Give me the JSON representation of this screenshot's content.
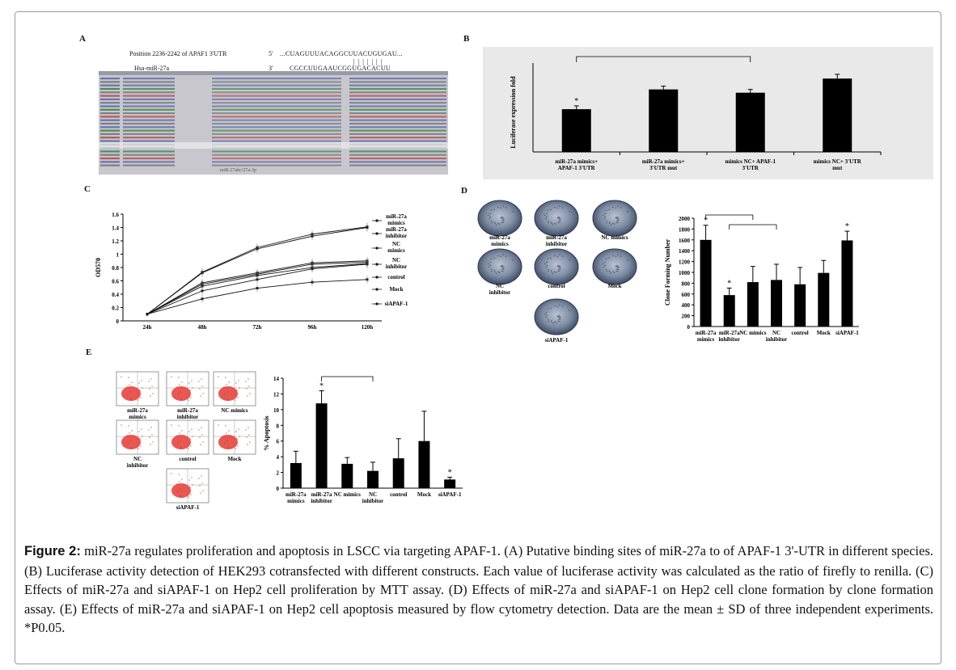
{
  "figure": {
    "panel_labels": [
      "A",
      "B",
      "C",
      "D",
      "E"
    ],
    "caption_label": "Figure 2:",
    "caption_text": " miR-27a regulates proliferation and apoptosis in LSCC via targeting APAF-1. (A) Putative binding sites of miR-27a to of APAF-1 3'-UTR in different species. (B) Luciferase activity detection of HEK293 cotransfected with different constructs. Each value of luciferase activity was calculated as the ratio of firefly to renilla. (C) Effects of miR-27a and siAPAF-1 on Hep2 cell proliferation by MTT assay. (D) Effects of miR-27a and siAPAF-1 on Hep2 cell clone formation by clone formation assay. (E) Effects of miR-27a and siAPAF-1 on Hep2 cell apoptosis measured by flow cytometry detection. Data are the mean ± SD of three independent experiments. *P0.05."
  },
  "panel_a": {
    "position_text": "Position 2236-2242 of APAF1 3'UTR",
    "utr_prime": "5'",
    "utr_seq": "...CUAGUUUACAGGCUUACUGUGAU...",
    "mir_name": "Hsa-miR-27a",
    "mir_prime": "3'",
    "mir_seq": "CGCCUUGAAUCGGUGACACUU",
    "bottom_label": "miR-27abc/27a-3p"
  },
  "colonies": [
    {
      "label": "miR-27a mimics"
    },
    {
      "label": "miR-27a inhibitor"
    },
    {
      "label": "NC mimics"
    },
    {
      "label": "NC inhibitor"
    },
    {
      "label": "control"
    },
    {
      "label": "Mock"
    },
    {
      "label": "siAPAF-1"
    }
  ],
  "flow_labels": [
    "miR-27a mimics",
    "miR-27a inhibitor",
    "NC mimics",
    "NC inhibitor",
    "control",
    "Mock",
    "siAPAF-1"
  ],
  "chart_data": [
    {
      "id": "B",
      "type": "bar",
      "ylabel": "Luciferase expression fold",
      "categories": [
        "miR-27a mimics+ APAF-1 3'UTR",
        "miR-27a mimics+ 3'UTR mut",
        "mimics NC+ APAF-1 3'UTR",
        "mimics NC+ 3'UTR mut"
      ],
      "values": [
        13,
        19,
        18,
        22.3
      ],
      "errors": [
        1,
        1,
        1,
        1.3
      ],
      "ylim": [
        0,
        28
      ],
      "significance": [
        "*",
        "",
        "",
        ""
      ],
      "bracket": [
        0,
        2
      ]
    },
    {
      "id": "C",
      "type": "line",
      "ylabel": "OD570",
      "x": [
        "24h",
        "48h",
        "72h",
        "96h",
        "120h"
      ],
      "ylim": [
        0,
        1.6
      ],
      "yticks": [
        0,
        0.2,
        0.4,
        0.6,
        0.8,
        1.0,
        1.2,
        1.4,
        1.6
      ],
      "series": [
        {
          "name": "miR-27a mimics",
          "values": [
            0.1,
            0.73,
            1.1,
            1.3,
            1.41
          ],
          "marker": "square"
        },
        {
          "name": "miR-27a inhibitor",
          "values": [
            0.1,
            0.72,
            1.08,
            1.27,
            1.4
          ],
          "marker": "triangle"
        },
        {
          "name": "NC mimics",
          "values": [
            0.1,
            0.57,
            0.72,
            0.87,
            0.9
          ],
          "marker": "x"
        },
        {
          "name": "NC inhibitor",
          "values": [
            0.1,
            0.55,
            0.7,
            0.85,
            0.88
          ],
          "marker": "star"
        },
        {
          "name": "control",
          "values": [
            0.1,
            0.52,
            0.68,
            0.8,
            0.86
          ],
          "marker": "circle"
        },
        {
          "name": "Mock",
          "values": [
            0.1,
            0.45,
            0.62,
            0.78,
            0.85
          ],
          "marker": "plus"
        },
        {
          "name": "siAPAF-1",
          "values": [
            0.1,
            0.33,
            0.49,
            0.58,
            0.62
          ],
          "marker": "dash"
        }
      ]
    },
    {
      "id": "D",
      "type": "bar",
      "ylabel": "Clone Forming Number",
      "categories": [
        "miR-27a mimics",
        "miR-27a inhibitor",
        "NC mimics",
        "NC inhibitor",
        "control",
        "Mock",
        "siAPAF-1"
      ],
      "values": [
        1600,
        580,
        820,
        860,
        780,
        990,
        1590
      ],
      "errors": [
        270,
        130,
        290,
        290,
        310,
        230,
        170
      ],
      "ylim": [
        0,
        2000
      ],
      "yticks": [
        0,
        200,
        400,
        600,
        800,
        1000,
        1200,
        1400,
        1600,
        1800,
        2000
      ],
      "significance": [
        "*",
        "*",
        "",
        "",
        "",
        "",
        "*"
      ],
      "brackets": [
        [
          0,
          2
        ],
        [
          1,
          3
        ]
      ]
    },
    {
      "id": "E",
      "type": "bar",
      "ylabel": "% Apoptosis",
      "categories": [
        "miR-27a mimics",
        "miR-27a inhibitor",
        "NC mimics",
        "NC inhibitor",
        "control",
        "Mock",
        "siAPAF-1"
      ],
      "values": [
        3.2,
        10.8,
        3.1,
        2.2,
        3.8,
        6.0,
        1.1
      ],
      "errors": [
        1.5,
        1.6,
        0.8,
        1.1,
        2.5,
        3.8,
        0.3
      ],
      "ylim": [
        0,
        14
      ],
      "yticks": [
        0,
        2,
        4,
        6,
        8,
        10,
        12,
        14
      ],
      "significance": [
        "",
        "*",
        "",
        "",
        "",
        "",
        "*"
      ],
      "bracket": [
        1,
        3
      ]
    }
  ]
}
